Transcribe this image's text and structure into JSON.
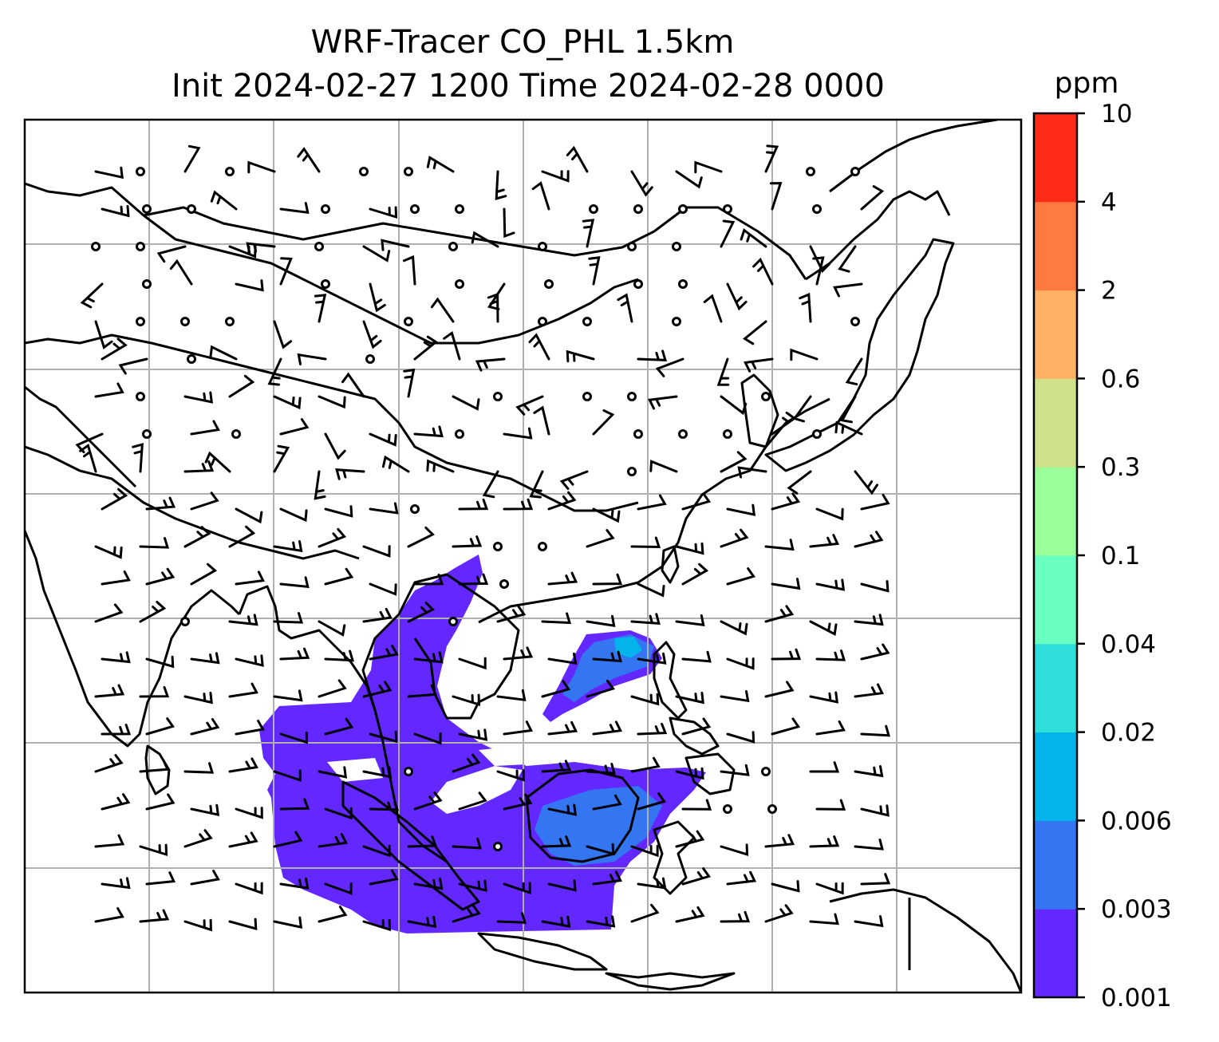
{
  "figure": {
    "title_line1": "WRF-Tracer CO_PHL 1.5km",
    "title_line2": "Init 2024-02-27 1200 Time 2024-02-28 0000"
  },
  "colorbar": {
    "unit": "ppm",
    "levels": [
      "0.001",
      "0.003",
      "0.006",
      "0.02",
      "0.04",
      "0.1",
      "0.3",
      "0.6",
      "2",
      "4",
      "10"
    ],
    "colors": [
      "#6328ff",
      "#3475f2",
      "#03b4ec",
      "#2dded9",
      "#69ffc1",
      "#9bff99",
      "#cfe08a",
      "#ffb164",
      "#ff7a3f",
      "#ff2a18"
    ]
  },
  "map": {
    "gridlines": true,
    "coastline_color": "#000000",
    "grid_color": "#b0b0b0",
    "tracer_color_low": "#6328ff",
    "tracer_color_mid": "#3475f2",
    "tracer_color_high": "#03b4ec"
  }
}
